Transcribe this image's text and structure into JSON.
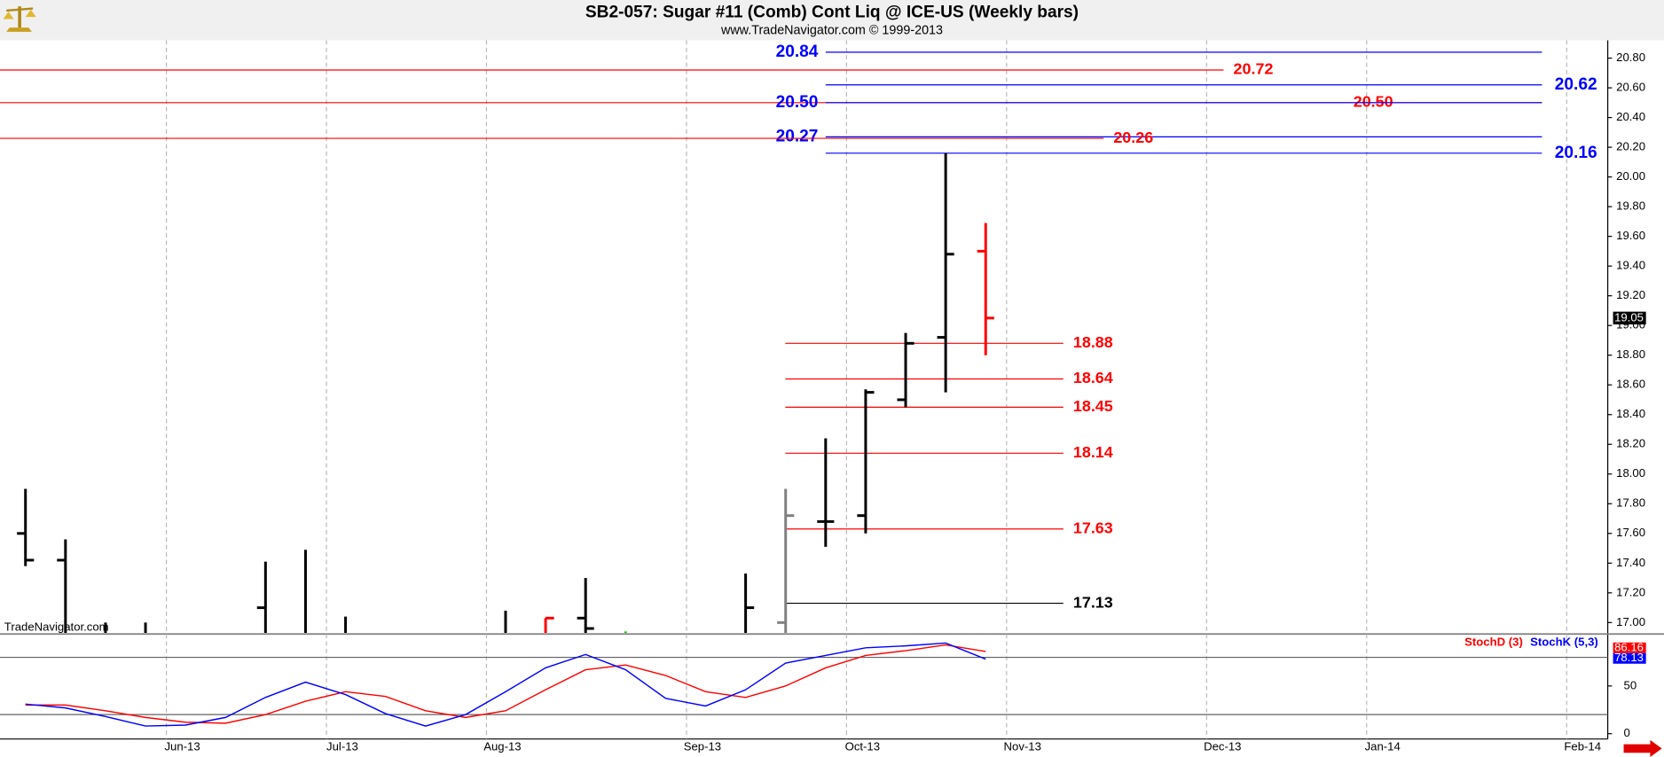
{
  "chart_data": [
    {
      "type": "ohlc",
      "title": "SB2-057:  Sugar #11 (Comb) Cont Liq @ ICE-US  (Weekly bars)",
      "subtitle": "www.TradeNavigator.com © 1999-2013",
      "watermark": "TradeNavigator.com",
      "categories": [
        null,
        null,
        null,
        null,
        "Jun-13",
        null,
        null,
        null,
        "Jul-13",
        null,
        null,
        null,
        "Aug-13",
        null,
        null,
        null,
        null,
        "Sep-13",
        null,
        null,
        null,
        "Oct-13",
        null,
        null,
        null,
        "Nov-13",
        null,
        null,
        null,
        null,
        "Dec-13",
        null,
        null,
        null,
        "Jan-14",
        null,
        null,
        null,
        null,
        "Feb-14"
      ],
      "open": [
        17.6,
        17.42,
        null,
        null,
        null,
        null,
        17.1,
        null,
        null,
        null,
        null,
        null,
        null,
        null,
        17.03,
        null,
        null,
        null,
        null,
        17.0,
        17.68,
        17.72,
        18.5,
        18.92,
        19.5,
        null,
        null,
        null,
        null,
        null,
        null,
        null,
        null,
        null,
        null,
        null,
        null,
        null,
        null,
        null
      ],
      "high": [
        17.9,
        17.56,
        17.0,
        17.0,
        null,
        null,
        17.41,
        17.49,
        17.04,
        null,
        null,
        null,
        17.08,
        17.03,
        17.3,
        16.94,
        null,
        null,
        17.33,
        17.9,
        18.24,
        18.57,
        18.95,
        20.16,
        19.69,
        null,
        null,
        null,
        null,
        null,
        null,
        null,
        null,
        null,
        null,
        null,
        null,
        null,
        null,
        null
      ],
      "low": [
        17.38,
        null,
        null,
        null,
        null,
        null,
        null,
        null,
        null,
        null,
        null,
        null,
        null,
        null,
        null,
        null,
        null,
        null,
        null,
        null,
        17.51,
        17.6,
        18.45,
        18.55,
        18.8,
        null,
        null,
        null,
        null,
        null,
        null,
        null,
        null,
        null,
        null,
        null,
        null,
        null,
        null,
        null
      ],
      "close": [
        17.42,
        null,
        null,
        null,
        null,
        null,
        null,
        null,
        null,
        null,
        null,
        null,
        null,
        17.03,
        16.96,
        null,
        null,
        null,
        17.1,
        17.72,
        17.68,
        18.55,
        18.88,
        19.48,
        19.05,
        null,
        null,
        null,
        null,
        null,
        null,
        null,
        null,
        null,
        null,
        null,
        null,
        null,
        null,
        null
      ],
      "bar_colors": [
        "#000000",
        "#000000",
        "#000000",
        "#000000",
        "#000000",
        "#000000",
        "#000000",
        "#000000",
        "#000000",
        "#000000",
        "#000000",
        "#000000",
        "#000000",
        "#ff0000",
        "#000000",
        "#00cc00",
        "#000000",
        "#000000",
        "#000000",
        "#808080",
        "#000000",
        "#000000",
        "#000000",
        "#000000",
        "#ff0000",
        "#000000",
        "#000000",
        "#000000",
        "#000000",
        "#000000",
        "#000000",
        "#000000",
        "#000000",
        "#000000",
        "#000000",
        "#000000",
        "#000000",
        "#000000",
        "#000000",
        "#000000"
      ],
      "ylim": [
        16.93,
        20.92
      ],
      "yticks": [
        {
          "value": 17.0,
          "label": "17.00"
        },
        {
          "value": 17.2,
          "label": "17.20"
        },
        {
          "value": 17.4,
          "label": "17.40"
        },
        {
          "value": 17.6,
          "label": "17.60"
        },
        {
          "value": 17.8,
          "label": "17.80"
        },
        {
          "value": 18.0,
          "label": "18.00"
        },
        {
          "value": 18.2,
          "label": "18.20"
        },
        {
          "value": 18.4,
          "label": "18.40"
        },
        {
          "value": 18.6,
          "label": "18.60"
        },
        {
          "value": 18.8,
          "label": "18.80"
        },
        {
          "value": 19.0,
          "label": "19.00"
        },
        {
          "value": 19.2,
          "label": "19.20"
        },
        {
          "value": 19.4,
          "label": "19.40"
        },
        {
          "value": 19.6,
          "label": "19.60"
        },
        {
          "value": 19.8,
          "label": "19.80"
        },
        {
          "value": 20.0,
          "label": "20.00"
        },
        {
          "value": 20.2,
          "label": "20.20"
        },
        {
          "value": 20.4,
          "label": "20.40"
        },
        {
          "value": 20.6,
          "label": "20.60"
        },
        {
          "value": 20.8,
          "label": "20.80"
        }
      ],
      "grid": true,
      "levels": {
        "values": [
          20.84,
          20.72,
          20.62,
          20.5,
          20.5,
          20.27,
          20.26,
          20.16,
          18.88,
          18.64,
          18.45,
          18.14,
          17.63,
          17.13
        ],
        "value_labels": [
          "20.84",
          "20.72",
          "20.62",
          "20.50",
          "20.50",
          "20.27",
          "20.26",
          "20.16",
          "18.88",
          "18.64",
          "18.45",
          "18.14",
          "17.63",
          "17.13"
        ],
        "colors": [
          "#0000ff",
          "#ff0000",
          "#0000ff",
          "#ff0000",
          "#0000ff",
          "#0000ff",
          "#ff0000",
          "#0000ff",
          "#ff0000",
          "#ff0000",
          "#ff0000",
          "#ff0000",
          "#ff0000",
          "#000000"
        ]
      }
    },
    {
      "type": "line",
      "series": [
        {
          "name": "StochD (3)",
          "color": "#ff0000",
          "values": [
            30,
            30,
            24,
            17,
            12,
            11,
            20,
            34,
            44,
            39,
            24,
            17,
            24,
            46,
            67,
            72,
            61,
            44,
            38,
            50,
            69,
            82,
            87,
            93,
            86.16,
            null,
            null,
            null,
            null,
            null,
            null,
            null,
            null,
            null,
            null,
            null,
            null,
            null,
            null,
            null
          ]
        },
        {
          "name": "StochK (5,3)",
          "color": "#0000ff",
          "values": [
            31,
            27,
            18,
            8,
            9,
            17,
            38,
            54,
            41,
            21,
            8,
            20,
            44,
            69,
            83,
            67,
            37,
            29,
            46,
            74,
            82,
            90,
            92,
            95,
            78.13,
            null,
            null,
            null,
            null,
            null,
            null,
            null,
            null,
            null,
            null,
            null,
            null,
            null,
            null,
            null
          ]
        }
      ],
      "ylim": [
        0,
        100
      ],
      "yticks": [
        0,
        50
      ],
      "levels": [
        20,
        80
      ]
    }
  ]
}
